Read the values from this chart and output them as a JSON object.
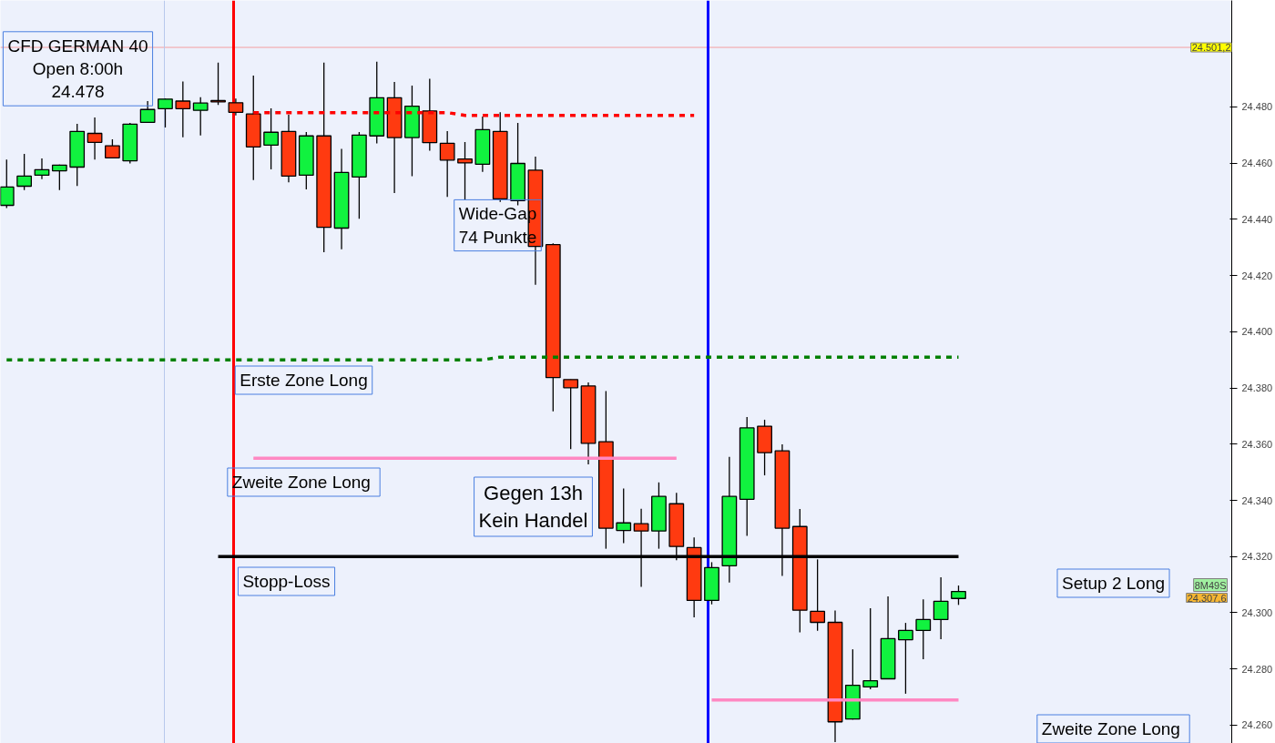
{
  "chart_data": {
    "type": "candlestick",
    "categories": [
      null,
      null,
      null,
      null,
      null,
      null,
      null,
      null,
      null,
      null,
      null,
      null,
      null,
      null,
      null,
      null,
      null,
      null,
      null,
      null,
      null,
      null,
      null,
      null,
      null,
      null,
      null,
      null,
      null,
      null,
      null,
      null,
      null,
      null,
      null,
      null,
      null,
      null,
      null,
      null,
      null,
      null,
      null,
      null,
      null,
      null,
      null,
      null,
      null,
      null,
      null,
      null,
      null,
      null,
      null
    ],
    "ohlc": [
      [
        24445.0,
        24461.3,
        24444.0,
        24451.5
      ],
      [
        24451.8,
        24463.3,
        24450.4,
        24455.4
      ],
      [
        24455.7,
        24461.7,
        24454.3,
        24457.7
      ],
      [
        24457.3,
        24459.5,
        24450.4,
        24459.3
      ],
      [
        24458.6,
        24474.0,
        24451.9,
        24471.3
      ],
      [
        24470.6,
        24476.3,
        24461.3,
        24467.4
      ],
      [
        24466.2,
        24468.5,
        24461.9,
        24461.9
      ],
      [
        24460.8,
        24474.3,
        24459.9,
        24473.9
      ],
      [
        24474.5,
        24482.1,
        24474.3,
        24479.1
      ],
      [
        24479.4,
        24483.0,
        24472.7,
        24482.8
      ],
      [
        24482.1,
        24489.1,
        24469.2,
        24479.4
      ],
      [
        24478.8,
        24483.5,
        24469.9,
        24481.4
      ],
      [
        24482.3,
        24495.8,
        24480.7,
        24481.8
      ],
      [
        24481.5,
        24483.0,
        24477.0,
        24478.1
      ],
      [
        24477.5,
        24491.2,
        24454.0,
        24465.8
      ],
      [
        24466.4,
        24479.5,
        24457.8,
        24471.0
      ],
      [
        24471.3,
        24477.2,
        24453.2,
        24455.4
      ],
      [
        24455.7,
        24471.1,
        24450.7,
        24469.7
      ],
      [
        24469.7,
        24495.8,
        24428.3,
        24437.2
      ],
      [
        24436.9,
        24465.1,
        24429.4,
        24456.7
      ],
      [
        24455.1,
        24471.1,
        24440.2,
        24470.0
      ],
      [
        24469.7,
        24496.1,
        24467.0,
        24483.3
      ],
      [
        24483.3,
        24488.9,
        24449.4,
        24469.1
      ],
      [
        24469.1,
        24487.6,
        24455.4,
        24480.3
      ],
      [
        24478.6,
        24490.0,
        24464.4,
        24467.3
      ],
      [
        24467.1,
        24471.4,
        24448.0,
        24461.1
      ],
      [
        24461.5,
        24467.5,
        24446.9,
        24460.1
      ],
      [
        24459.6,
        24476.6,
        24456.9,
        24471.9
      ],
      [
        24471.3,
        24478.1,
        24446.2,
        24447.3
      ],
      [
        24446.7,
        24474.3,
        24445.0,
        24459.9
      ],
      [
        24457.5,
        24462.3,
        24416.7,
        24430.4
      ],
      [
        24431.0,
        24431.5,
        24371.7,
        24383.7
      ],
      [
        24383.0,
        24383.0,
        24358.2,
        24380.1
      ],
      [
        24380.7,
        24382.0,
        24352.8,
        24360.3
      ],
      [
        24360.9,
        24378.9,
        24322.8,
        24330.1
      ],
      [
        24329.3,
        24344.2,
        24324.8,
        24332.0
      ],
      [
        24331.7,
        24337.0,
        24309.2,
        24329.1
      ],
      [
        24329.1,
        24346.4,
        24322.8,
        24341.4
      ],
      [
        24338.8,
        24342.7,
        24318.7,
        24323.6
      ],
      [
        24323.2,
        24326.8,
        24298.4,
        24304.4
      ],
      [
        24304.4,
        24318.0,
        24303.0,
        24316.1
      ],
      [
        24316.7,
        24355.5,
        24310.8,
        24341.4
      ],
      [
        24340.4,
        24369.7,
        24327.4,
        24365.8
      ],
      [
        24366.4,
        24368.7,
        24348.9,
        24357.0
      ],
      [
        24357.6,
        24359.9,
        24313.1,
        24330.1
      ],
      [
        24330.7,
        24336.9,
        24293.0,
        24300.9
      ],
      [
        24300.5,
        24319.0,
        24293.6,
        24296.6
      ],
      [
        24296.6,
        24300.8,
        24254.0,
        24261.2
      ],
      [
        24262.2,
        24287.0,
        24262.0,
        24274.2
      ],
      [
        24273.6,
        24301.6,
        24272.8,
        24275.8
      ],
      [
        24276.5,
        24305.8,
        24276.5,
        24290.8
      ],
      [
        24290.4,
        24296.4,
        24271.2,
        24293.7
      ],
      [
        24293.7,
        24304.8,
        24283.5,
        24297.6
      ],
      [
        24297.6,
        24312.6,
        24290.6,
        24304.1
      ],
      [
        24305.1,
        24309.7,
        24302.8,
        24307.6
      ]
    ],
    "colors": [
      "#11f23f",
      "#11f23f",
      "#11f23f",
      "#11f23f",
      "#11f23f",
      "#ff3a10",
      "#ff3a10",
      "#11f23f",
      "#11f23f",
      "#11f23f",
      "#ff3a10",
      "#11f23f",
      "#ff3a10",
      "#ff3a10",
      "#ff3a10",
      "#11f23f",
      "#ff3a10",
      "#11f23f",
      "#ff3a10",
      "#11f23f",
      "#11f23f",
      "#11f23f",
      "#ff3a10",
      "#11f23f",
      "#ff3a10",
      "#ff3a10",
      "#ff3a10",
      "#11f23f",
      "#ff3a10",
      "#11f23f",
      "#ff3a10",
      "#ff3a10",
      "#ff3a10",
      "#ff3a10",
      "#ff3a10",
      "#11f23f",
      "#ff3a10",
      "#11f23f",
      "#ff3a10",
      "#ff3a10",
      "#11f23f",
      "#11f23f",
      "#11f23f",
      "#ff3a10",
      "#ff3a10",
      "#ff3a10",
      "#ff3a10",
      "#ff3a10",
      "#11f23f",
      "#11f23f",
      "#11f23f",
      "#11f23f",
      "#11f23f",
      "#11f23f",
      "#11f23f"
    ],
    "series": [
      {
        "type": "line",
        "values": [
          null,
          null,
          null,
          null,
          null,
          null,
          null,
          null,
          null,
          null,
          null,
          null,
          null,
          null,
          24478,
          24478,
          24478,
          24478,
          24478,
          24478,
          24478,
          24478,
          24478,
          24478,
          24478,
          24478,
          24477,
          24477,
          24477,
          24477,
          24477,
          24477,
          24477,
          24477,
          24477,
          24477,
          24477,
          24477,
          24477,
          24477,
          null,
          null,
          null,
          null,
          null,
          null,
          null,
          null,
          null,
          null,
          null,
          null,
          null,
          null,
          null
        ],
        "color": "#ff0000",
        "line_style": "dashed"
      },
      {
        "type": "line",
        "values": [
          24390,
          24390,
          24390,
          24390,
          24390,
          24390,
          24390,
          24390,
          24390,
          24390,
          24390,
          24390,
          24390,
          24390,
          24390,
          24390,
          24390,
          24390,
          24390,
          24390,
          24390,
          24390,
          24390,
          24390,
          24390,
          24390,
          24390,
          24390,
          24391,
          24391,
          24391,
          24391,
          24391,
          24391,
          24391,
          24391,
          24391,
          24391,
          24391,
          24391,
          24391,
          24391,
          24391,
          24391,
          24391,
          24391,
          24391,
          24391,
          24391,
          24391,
          24391,
          24391,
          24391,
          24391,
          24391
        ],
        "color": "#008000",
        "line_style": "dashed"
      },
      {
        "type": "line",
        "values": [
          null,
          null,
          null,
          null,
          null,
          null,
          null,
          null,
          null,
          null,
          null,
          null,
          null,
          null,
          24355,
          24355,
          24355,
          24355,
          24355,
          24355,
          24355,
          24355,
          24355,
          24355,
          24355,
          24355,
          24355,
          24355,
          24355,
          24355,
          24355,
          24355,
          24355,
          24355,
          24355,
          24355,
          24355,
          24355,
          24355,
          null,
          null,
          null,
          null,
          null,
          null,
          null,
          null,
          null,
          null,
          null,
          null,
          null,
          null,
          null,
          null
        ],
        "color": "#ff88c2",
        "line_style": "solid"
      },
      {
        "type": "line",
        "values": [
          null,
          null,
          null,
          null,
          null,
          null,
          null,
          null,
          null,
          null,
          null,
          null,
          24320,
          24320,
          24320,
          24320,
          24320,
          24320,
          24320,
          24320,
          24320,
          24320,
          24320,
          24320,
          24320,
          24320,
          24320,
          24320,
          24320,
          24320,
          24320,
          24320,
          24320,
          24320,
          24320,
          24320,
          24320,
          24320,
          24320,
          24320,
          24320,
          24320,
          24320,
          24320,
          24320,
          24320,
          24320,
          24320,
          24320,
          24320,
          24320,
          24320,
          24320,
          24320,
          24320
        ],
        "color": "#000000",
        "line_style": "solid"
      },
      {
        "type": "line",
        "values": [
          null,
          null,
          null,
          null,
          null,
          null,
          null,
          null,
          null,
          null,
          null,
          null,
          null,
          null,
          null,
          null,
          null,
          null,
          null,
          null,
          null,
          null,
          null,
          null,
          null,
          null,
          null,
          null,
          null,
          null,
          null,
          null,
          null,
          null,
          null,
          null,
          null,
          null,
          null,
          null,
          24269,
          24269,
          24269,
          24269,
          24269,
          24269,
          24269,
          24269,
          24269,
          24269,
          24269,
          24269,
          24269,
          24269,
          24269
        ],
        "color": "#ff88c2",
        "line_style": "solid"
      }
    ],
    "ref_lines": [
      {
        "axis": "y",
        "value": 24501.2,
        "label": "24.501,2",
        "color": "#f4a0a0"
      }
    ],
    "annotations": [
      "CFD GERMAN 40\nOpen 8:00h\n24.478",
      "Wide-Gap\n74 Punkte",
      "Erste Zone Long",
      "Zweite  Zone Long",
      "Gegen 13h\nKein Handel",
      "Stopp-Loss",
      "Setup 2 Long",
      "Zweite  Zone Long",
      "8M49S",
      "24.307,6"
    ],
    "ylim": [
      24253.5,
      24517.9
    ],
    "yticks": [
      {
        "value": 24260,
        "label": "24.260"
      },
      {
        "value": 24280,
        "label": "24.280"
      },
      {
        "value": 24300,
        "label": "24.300"
      },
      {
        "value": 24320,
        "label": "24.320"
      },
      {
        "value": 24340,
        "label": "24.340"
      },
      {
        "value": 24360,
        "label": "24.360"
      },
      {
        "value": 24380,
        "label": "24.380"
      },
      {
        "value": 24400,
        "label": "24.400"
      },
      {
        "value": 24420,
        "label": "24.420"
      },
      {
        "value": 24440,
        "label": "24.440"
      },
      {
        "value": 24460,
        "label": "24.460"
      },
      {
        "value": 24480,
        "label": "24.480"
      }
    ],
    "grid": false
  }
}
